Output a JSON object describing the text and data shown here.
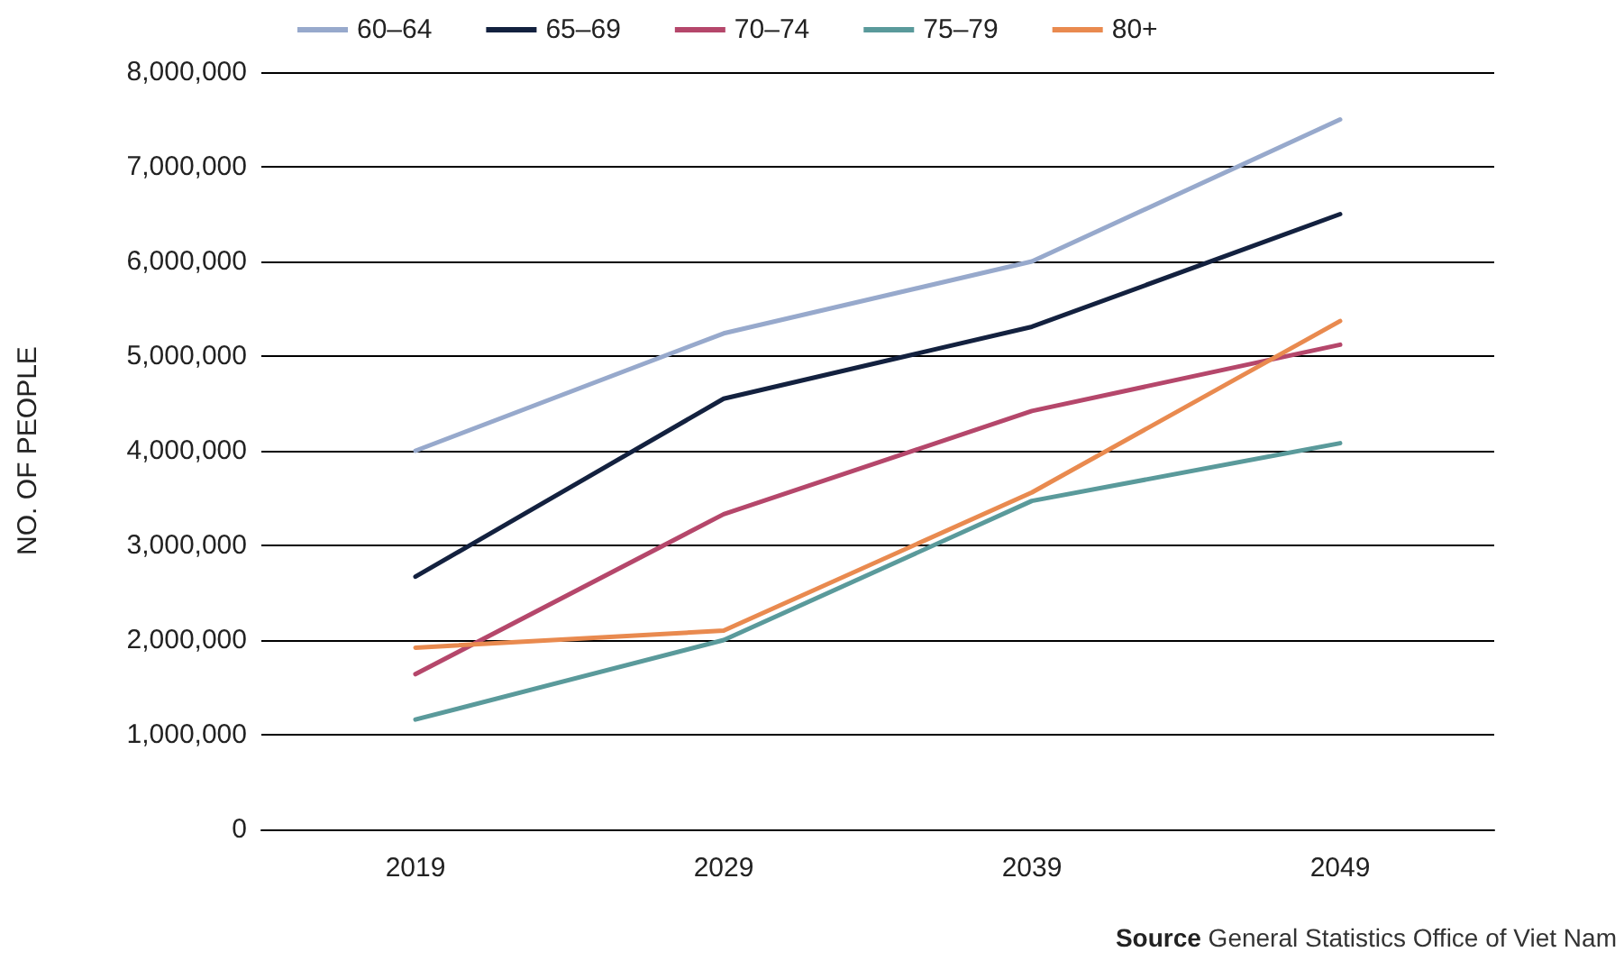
{
  "chart_data": {
    "type": "line",
    "ylabel": "NO. OF PEOPLE",
    "categories": [
      "2019",
      "2029",
      "2039",
      "2049"
    ],
    "series": [
      {
        "name": "60–64",
        "color": "#97a9cc",
        "values": [
          4000000,
          5240000,
          6000000,
          7500000
        ]
      },
      {
        "name": "65–69",
        "color": "#13213f",
        "values": [
          2670000,
          4550000,
          5310000,
          6500000
        ]
      },
      {
        "name": "70–74",
        "color": "#b5476b",
        "values": [
          1640000,
          3330000,
          4420000,
          5120000
        ]
      },
      {
        "name": "75–79",
        "color": "#5a9a9b",
        "values": [
          1160000,
          2000000,
          3470000,
          4080000
        ]
      },
      {
        "name": "80+",
        "color": "#e98a4f",
        "values": [
          1920000,
          2100000,
          3560000,
          5370000
        ]
      }
    ],
    "ylim": [
      0,
      8000000
    ],
    "yticks": [
      0,
      {
        "value": 1000000,
        "label": "1,000,000"
      },
      {
        "value": 2000000,
        "label": "2,000,000"
      },
      {
        "value": 3000000,
        "label": "3,000,000"
      },
      {
        "value": 4000000,
        "label": "4,000,000"
      },
      {
        "value": 5000000,
        "label": "5,000,000"
      },
      {
        "value": 6000000,
        "label": "6,000,000"
      },
      {
        "value": 7000000,
        "label": "7,000,000"
      },
      {
        "value": 8000000,
        "label": "8,000,000"
      }
    ],
    "grid": "y",
    "legend": "top left",
    "marker": "none",
    "line_style": "solid",
    "annotations": [
      "Source General Statistics Office of Viet Nam"
    ]
  }
}
